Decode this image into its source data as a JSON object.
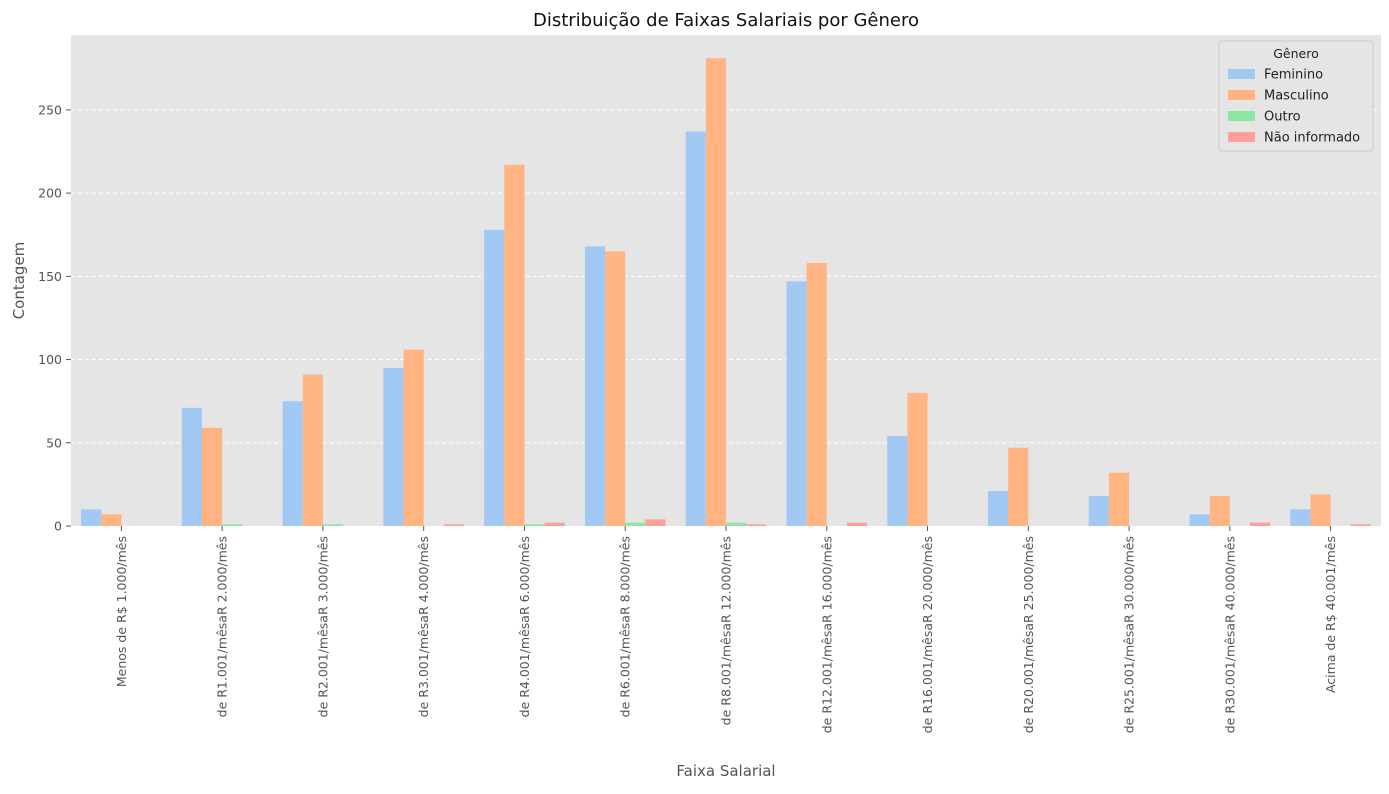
{
  "chart_data": {
    "type": "bar",
    "title": "Distribuição de Faixas Salariais por Gênero",
    "xlabel": "Faixa Salarial",
    "ylabel": "Contagem",
    "ylim": [
      0,
      295
    ],
    "yticks": [
      0,
      50,
      100,
      150,
      200,
      250
    ],
    "grid": true,
    "legend_position": "top-right",
    "legend_title": "Gênero",
    "categories": [
      "Menos de R$ 1.000/mês",
      "de R1.001/mêsaR 2.000/mês",
      "de R2.001/mêsaR 3.000/mês",
      "de R3.001/mêsaR 4.000/mês",
      "de R4.001/mêsaR 6.000/mês",
      "de R6.001/mêsaR 8.000/mês",
      "de R8.001/mêsaR 12.000/mês",
      "de R12.001/mêsaR 16.000/mês",
      "de R16.001/mêsaR 20.000/mês",
      "de R20.001/mêsaR 25.000/mês",
      "de R25.001/mêsaR 30.000/mês",
      "de R30.001/mêsaR 40.000/mês",
      "Acima de R$ 40.001/mês"
    ],
    "series": [
      {
        "name": "Feminino",
        "color": "#a1c9f4",
        "values": [
          10,
          71,
          75,
          95,
          178,
          168,
          237,
          147,
          54,
          21,
          18,
          7,
          10
        ]
      },
      {
        "name": "Masculino",
        "color": "#ffb482",
        "values": [
          7,
          59,
          91,
          106,
          217,
          165,
          281,
          158,
          80,
          47,
          32,
          18,
          19
        ]
      },
      {
        "name": "Outro",
        "color": "#8de5a1",
        "values": [
          0,
          1,
          1,
          0,
          1,
          2,
          2,
          0,
          0,
          0,
          0,
          0,
          0
        ]
      },
      {
        "name": "Não informado",
        "color": "#ff9f9b",
        "values": [
          0,
          0,
          0,
          1,
          2,
          4,
          1,
          2,
          0,
          0,
          0,
          2,
          1
        ]
      }
    ]
  },
  "colors": {
    "plot_background": "#e5e5e5",
    "grid": "#ffffff",
    "text": "#555555"
  }
}
